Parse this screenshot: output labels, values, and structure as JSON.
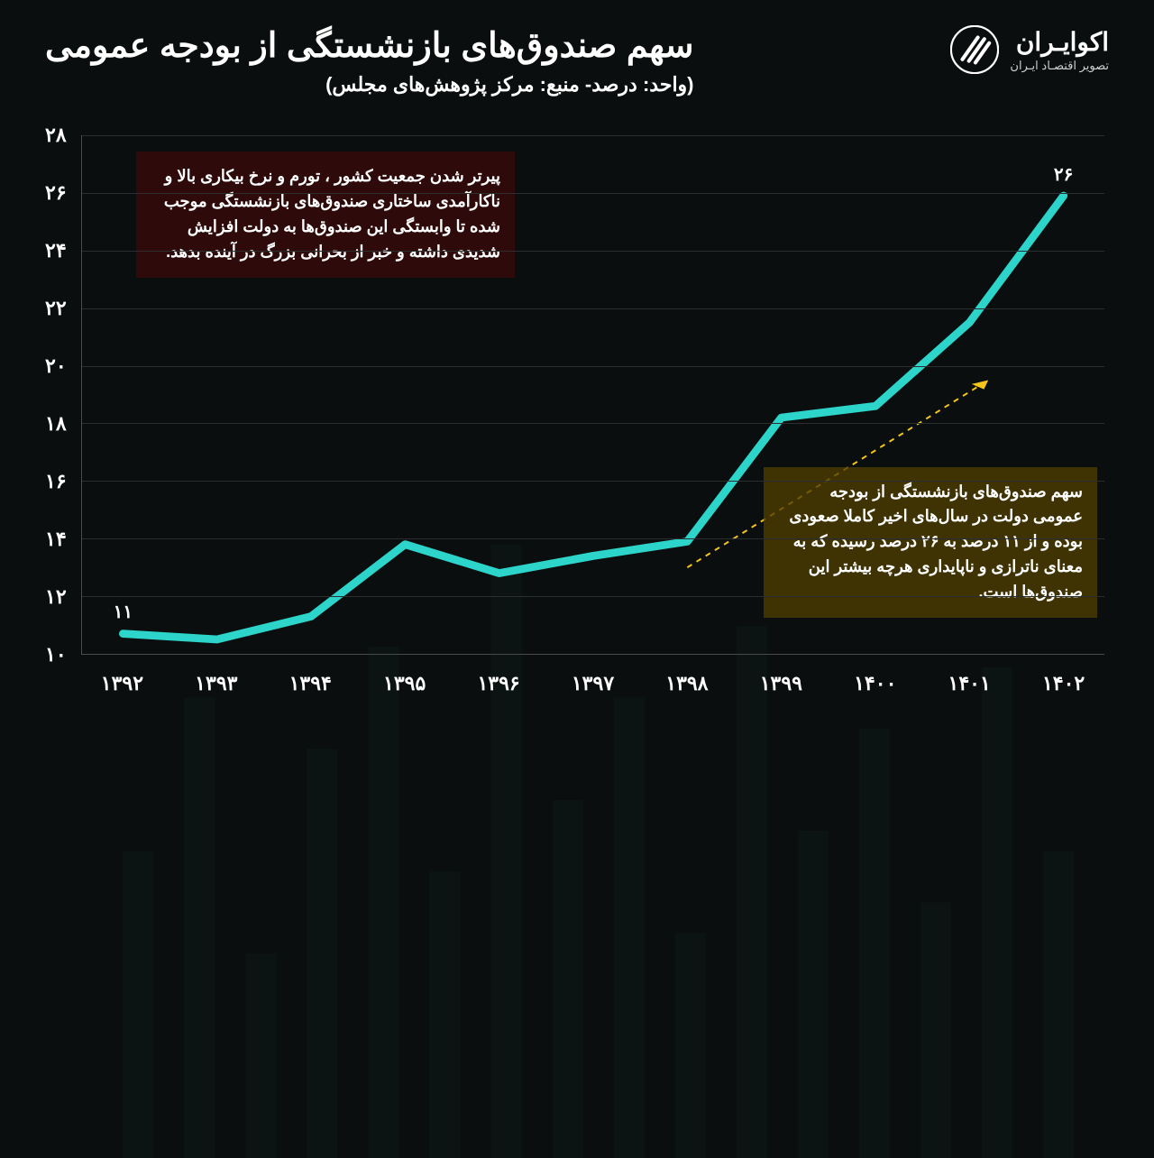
{
  "logo": {
    "title": "اکوایـران",
    "subtitle": "تصویر اقتصـاد ایـران"
  },
  "header": {
    "title": "سهم صندوق‌های بازنشستگی از بودجه عمومی",
    "subtitle": "(واحد: درصد- منبع: مرکز پژوهش‌های مجلس)"
  },
  "chart": {
    "type": "line",
    "line_color": "#2dd4c9",
    "line_width": 4,
    "background_color": "#0a0e0e",
    "grid_color": "#2a2e2e",
    "axis_color": "#4a4a4a",
    "ylim": [
      10,
      28
    ],
    "ytick_step": 2,
    "yticks": [
      "۱۰",
      "۱۲",
      "۱۴",
      "۱۶",
      "۱۸",
      "۲۰",
      "۲۲",
      "۲۴",
      "۲۶",
      "۲۸"
    ],
    "xlabels": [
      "۱۳۹۲",
      "۱۳۹۳",
      "۱۳۹۴",
      "۱۳۹۵",
      "۱۳۹۶",
      "۱۳۹۷",
      "۱۳۹۸",
      "۱۳۹۹",
      "۱۴۰۰",
      "۱۴۰۱",
      "۱۴۰۲"
    ],
    "values": [
      10.7,
      10.5,
      11.3,
      13.8,
      12.8,
      13.4,
      13.9,
      18.2,
      18.6,
      21.5,
      25.9
    ],
    "point_labels": {
      "0": "۱۱",
      "10": "۲۶"
    },
    "annotations": {
      "red": "پیرتر شدن جمعیت کشور ، تورم و نرخ بیکاری بالا و ناکارآمدی ساختاری صندوق‌های بازنشستگی موجب شده تا وابستگی این صندوق‌ها به دولت افزایش شدیدی داشته و خبر از بحرانی بزرگ در آینده بدهد.",
      "olive": "سهم صندوق‌های بازنشستگی از بودجه عمومی دولت در سال‌های اخیر کاملا صعودی بوده و از ۱۱ درصد به ۲۶ درصد رسیده که به معنای ناترازی و ناپایداری هرچه بیشتر این صندوق‌ها است."
    },
    "arrow": {
      "color": "#f5c518",
      "dash": "6,6",
      "width": 2,
      "from_idx": 6,
      "from_val": 13.0,
      "to_idx": 9.2,
      "to_val": 19.5
    }
  }
}
